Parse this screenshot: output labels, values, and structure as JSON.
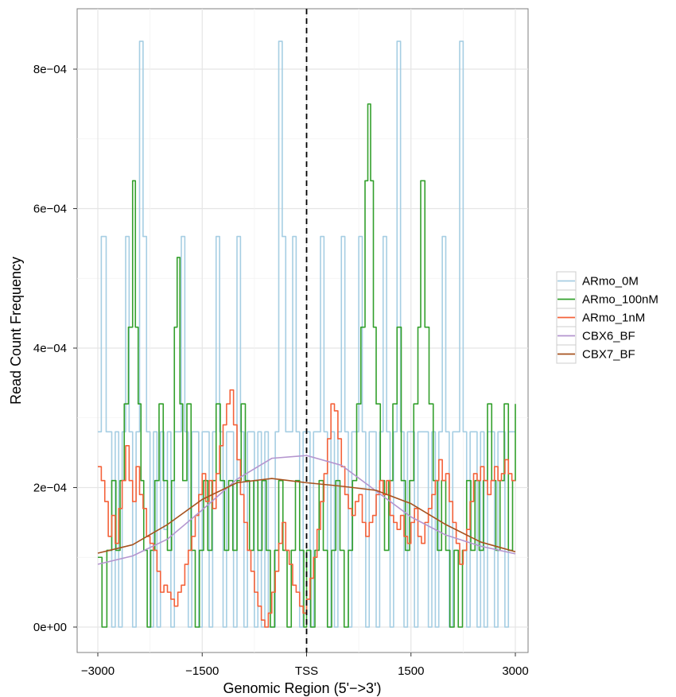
{
  "chart_data": {
    "type": "line",
    "title": "",
    "xlabel": "Genomic Region (5'−>3')",
    "ylabel": "Read Count Frequency",
    "xlim": [
      -3000,
      3000
    ],
    "ylim": [
      0,
      0.00088
    ],
    "x_ticks": [
      -3000,
      -1500,
      0,
      1500,
      3000
    ],
    "x_tick_labels": [
      "−3000",
      "−1500",
      "TSS",
      "1500",
      "3000"
    ],
    "y_ticks": [
      0,
      0.0002,
      0.0004,
      0.0006,
      0.0008
    ],
    "y_tick_labels": [
      "0e+00",
      "2e−04",
      "4e−04",
      "6e−04",
      "8e−04"
    ],
    "grid": true,
    "legend_position": "right",
    "vline": {
      "x": 0,
      "style": "dashed",
      "color": "#000000"
    },
    "series": [
      {
        "name": "ARmo_0M",
        "color": "#a6cee3",
        "step": true,
        "x": [
          -3000,
          -2950,
          -2880,
          -2800,
          -2750,
          -2700,
          -2650,
          -2600,
          -2550,
          -2500,
          -2450,
          -2400,
          -2350,
          -2300,
          -2250,
          -2200,
          -2150,
          -2100,
          -2050,
          -2000,
          -1950,
          -1900,
          -1850,
          -1800,
          -1750,
          -1700,
          -1650,
          -1600,
          -1550,
          -1500,
          -1450,
          -1400,
          -1350,
          -1300,
          -1250,
          -1200,
          -1150,
          -1100,
          -1050,
          -1000,
          -950,
          -900,
          -850,
          -800,
          -750,
          -700,
          -650,
          -600,
          -550,
          -500,
          -450,
          -400,
          -350,
          -300,
          -250,
          -200,
          -150,
          -100,
          -50,
          0,
          50,
          100,
          150,
          200,
          250,
          300,
          350,
          400,
          450,
          500,
          550,
          600,
          650,
          700,
          750,
          800,
          850,
          900,
          950,
          1000,
          1050,
          1100,
          1150,
          1200,
          1250,
          1300,
          1350,
          1400,
          1450,
          1500,
          1550,
          1600,
          1650,
          1700,
          1750,
          1800,
          1850,
          1900,
          1950,
          2000,
          2050,
          2100,
          2150,
          2200,
          2250,
          2300,
          2350,
          2400,
          2450,
          2500,
          2550,
          2600,
          2650,
          2700,
          2750,
          2800,
          2850,
          2900,
          2950,
          3000
        ],
        "values": [
          0.00028,
          0.00056,
          0.00028,
          0,
          0.00028,
          0,
          0.00028,
          0.00056,
          0.00028,
          0,
          0.00028,
          0.00084,
          0.00056,
          0.00028,
          0,
          0.00028,
          0,
          0.00028,
          0.00014,
          0.00028,
          0,
          0.00028,
          0.00028,
          0.00056,
          0.00028,
          0,
          0.00028,
          0.00028,
          0,
          0.00028,
          0.00028,
          0,
          0.00028,
          0.00056,
          0.00028,
          0,
          0.00028,
          0.00028,
          0,
          0.00056,
          0.00028,
          0,
          0.00028,
          0.00028,
          0,
          0.00028,
          0,
          0.00028,
          0,
          0,
          0.00028,
          0.00084,
          0.00056,
          0.00028,
          0.00028,
          0.00056,
          0.00028,
          0,
          0.00028,
          0.00028,
          0,
          0.00028,
          0.00028,
          0.00056,
          0.00028,
          0,
          0.00028,
          0,
          0.00028,
          0.00056,
          0.00028,
          0,
          0.00028,
          0.00028,
          0.00056,
          0.00028,
          0,
          0.00028,
          0.00028,
          0,
          0.00028,
          0.00056,
          0.00028,
          0,
          0.00028,
          0.00084,
          0.00028,
          0,
          0.00028,
          0.00028,
          0,
          0.00028,
          0.00028,
          0.00028,
          0,
          0.00028,
          0,
          0.00028,
          0.00056,
          0.00028,
          0,
          0.00028,
          0.00028,
          0.00084,
          0.00028,
          0,
          0.00028,
          0.00028,
          0,
          0.00028,
          0,
          0.00028,
          0.00028,
          0,
          0.00028,
          0.00028,
          0,
          0.00028,
          0.00028,
          0.00028
        ]
      },
      {
        "name": "ARmo_100nM",
        "color": "#33a02c",
        "step": true,
        "x": [
          -3000,
          -2940,
          -2870,
          -2800,
          -2740,
          -2680,
          -2620,
          -2560,
          -2500,
          -2460,
          -2420,
          -2380,
          -2340,
          -2290,
          -2240,
          -2180,
          -2120,
          -2060,
          -2000,
          -1940,
          -1900,
          -1860,
          -1820,
          -1780,
          -1720,
          -1660,
          -1600,
          -1540,
          -1480,
          -1420,
          -1360,
          -1300,
          -1240,
          -1180,
          -1120,
          -1060,
          -1000,
          -940,
          -880,
          -820,
          -760,
          -700,
          -640,
          -580,
          -520,
          -460,
          -400,
          -340,
          -280,
          -220,
          -160,
          -100,
          -40,
          0,
          60,
          120,
          180,
          240,
          300,
          360,
          420,
          480,
          540,
          600,
          660,
          720,
          780,
          840,
          880,
          920,
          960,
          1000,
          1060,
          1120,
          1180,
          1240,
          1300,
          1360,
          1420,
          1480,
          1540,
          1600,
          1640,
          1700,
          1760,
          1820,
          1880,
          1940,
          2000,
          2060,
          2120,
          2180,
          2240,
          2300,
          2360,
          2420,
          2480,
          2540,
          2600,
          2660,
          2720,
          2780,
          2840,
          2900,
          2960,
          3000
        ],
        "values": [
          0.0001,
          0,
          0.00011,
          0.00021,
          0.00011,
          0.00021,
          0.00032,
          0.00043,
          0.00064,
          0.00043,
          0.00032,
          0.00021,
          0.00011,
          0,
          0.00011,
          0.00021,
          0.00032,
          0.00021,
          0.00011,
          0.00021,
          0.00043,
          0.00053,
          0.00032,
          0.00021,
          0.00032,
          0.00011,
          0,
          0.00011,
          0.00021,
          0.00011,
          0.00021,
          0.00032,
          0.00021,
          0.00011,
          0.00021,
          0.00011,
          0.00021,
          0.00032,
          0.00021,
          0.00011,
          0.00021,
          0.00011,
          0.00021,
          0.00011,
          0,
          0.00011,
          0.00021,
          0.00011,
          0,
          0.00011,
          0.00021,
          0.00011,
          0,
          0.00011,
          0,
          0.00011,
          0.00021,
          0.00011,
          0,
          0.00011,
          0.00021,
          0.00011,
          0,
          0.00011,
          0.00021,
          0.00032,
          0.00043,
          0.00064,
          0.00075,
          0.00064,
          0.00043,
          0.00032,
          0.00021,
          0.00011,
          0.00021,
          0.00032,
          0.00043,
          0.00021,
          0.00011,
          0.00021,
          0.00032,
          0.00043,
          0.00064,
          0.00043,
          0.00032,
          0.00021,
          0.00011,
          0.00021,
          0.00011,
          0,
          0.00011,
          0,
          0.00011,
          0.00021,
          0.00011,
          0.00021,
          0.00011,
          0.00021,
          0.00032,
          0.00021,
          0.00011,
          0.00021,
          0.00032,
          0.00011,
          0.00021,
          0.00032
        ]
      },
      {
        "name": "ARmo_1nM",
        "color": "#f4623a",
        "step": true,
        "x": [
          -3000,
          -2950,
          -2900,
          -2850,
          -2800,
          -2750,
          -2700,
          -2650,
          -2600,
          -2550,
          -2500,
          -2450,
          -2400,
          -2350,
          -2300,
          -2250,
          -2200,
          -2150,
          -2100,
          -2050,
          -2000,
          -1950,
          -1900,
          -1850,
          -1800,
          -1750,
          -1700,
          -1650,
          -1600,
          -1550,
          -1500,
          -1450,
          -1400,
          -1350,
          -1300,
          -1250,
          -1200,
          -1150,
          -1100,
          -1050,
          -1000,
          -950,
          -900,
          -850,
          -800,
          -750,
          -700,
          -650,
          -600,
          -550,
          -500,
          -450,
          -400,
          -350,
          -300,
          -250,
          -200,
          -150,
          -100,
          -50,
          0,
          50,
          100,
          150,
          200,
          250,
          300,
          350,
          400,
          450,
          500,
          550,
          600,
          650,
          700,
          750,
          800,
          850,
          900,
          950,
          1000,
          1050,
          1100,
          1150,
          1200,
          1250,
          1300,
          1350,
          1400,
          1450,
          1500,
          1550,
          1600,
          1650,
          1700,
          1750,
          1800,
          1850,
          1900,
          1950,
          2000,
          2050,
          2100,
          2150,
          2200,
          2250,
          2300,
          2350,
          2400,
          2450,
          2500,
          2550,
          2600,
          2650,
          2700,
          2750,
          2800,
          2850,
          2900,
          2950,
          3000
        ],
        "values": [
          0.00023,
          0.00021,
          0.00018,
          0.00013,
          0.00016,
          0.00012,
          0.00017,
          0.00021,
          0.00026,
          0.00021,
          0.00018,
          0.00023,
          0.00019,
          0.00017,
          0.00013,
          0.00012,
          0.00011,
          8e-05,
          5e-05,
          6e-05,
          5e-05,
          4e-05,
          3e-05,
          5e-05,
          6e-05,
          9e-05,
          0.00011,
          0.00013,
          0.00016,
          0.00019,
          0.00022,
          0.00018,
          0.00021,
          0.00017,
          0.00022,
          0.00026,
          0.00029,
          0.00032,
          0.00034,
          0.00029,
          0.00024,
          0.00019,
          0.00015,
          0.00011,
          8e-05,
          5e-05,
          3e-05,
          1e-05,
          0,
          2e-05,
          5e-05,
          8e-05,
          0.00012,
          0.00015,
          0.00011,
          9e-05,
          6e-05,
          5e-05,
          3e-05,
          2e-05,
          4e-05,
          7e-05,
          0.0001,
          0.00014,
          0.00018,
          0.00022,
          0.00027,
          0.00032,
          0.00031,
          0.00027,
          0.00023,
          0.00019,
          0.00017,
          0.00016,
          0.00018,
          0.00019,
          0.00015,
          0.00013,
          0.00015,
          0.00016,
          0.00019,
          0.00021,
          0.00019,
          0.00021,
          0.00016,
          0.00015,
          0.00014,
          0.00016,
          0.00013,
          0.00012,
          0.00015,
          0.00017,
          0.00013,
          0.00012,
          0.00015,
          0.00017,
          0.00019,
          0.00021,
          0.00024,
          0.00021,
          0.00022,
          0.00018,
          0.00015,
          0.00012,
          9e-05,
          0.00011,
          0.00014,
          0.00018,
          0.00022,
          0.00021,
          0.00023,
          0.00021,
          0.00019,
          0.00021,
          0.00023,
          0.00021,
          0.00022,
          0.00024,
          0.00022,
          0.00021,
          0.00021
        ]
      },
      {
        "name": "CBX6_BF",
        "color": "#b495cf",
        "step": false,
        "x": [
          -3000,
          -2500,
          -2000,
          -1500,
          -1000,
          -500,
          0,
          500,
          1000,
          1500,
          2000,
          2500,
          3000
        ],
        "values": [
          9e-05,
          0.000102,
          0.000126,
          0.000168,
          0.000212,
          0.000242,
          0.000246,
          0.000232,
          0.000195,
          0.000158,
          0.000132,
          0.000116,
          0.000105
        ]
      },
      {
        "name": "CBX7_BF",
        "color": "#a6521e",
        "step": false,
        "x": [
          -3000,
          -2500,
          -2000,
          -1500,
          -1000,
          -500,
          0,
          500,
          1000,
          1500,
          2000,
          2500,
          3000
        ],
        "values": [
          0.000106,
          0.000118,
          0.000147,
          0.000183,
          0.000207,
          0.000213,
          0.000207,
          0.000202,
          0.000196,
          0.000177,
          0.000147,
          0.000122,
          0.000108
        ]
      }
    ]
  }
}
